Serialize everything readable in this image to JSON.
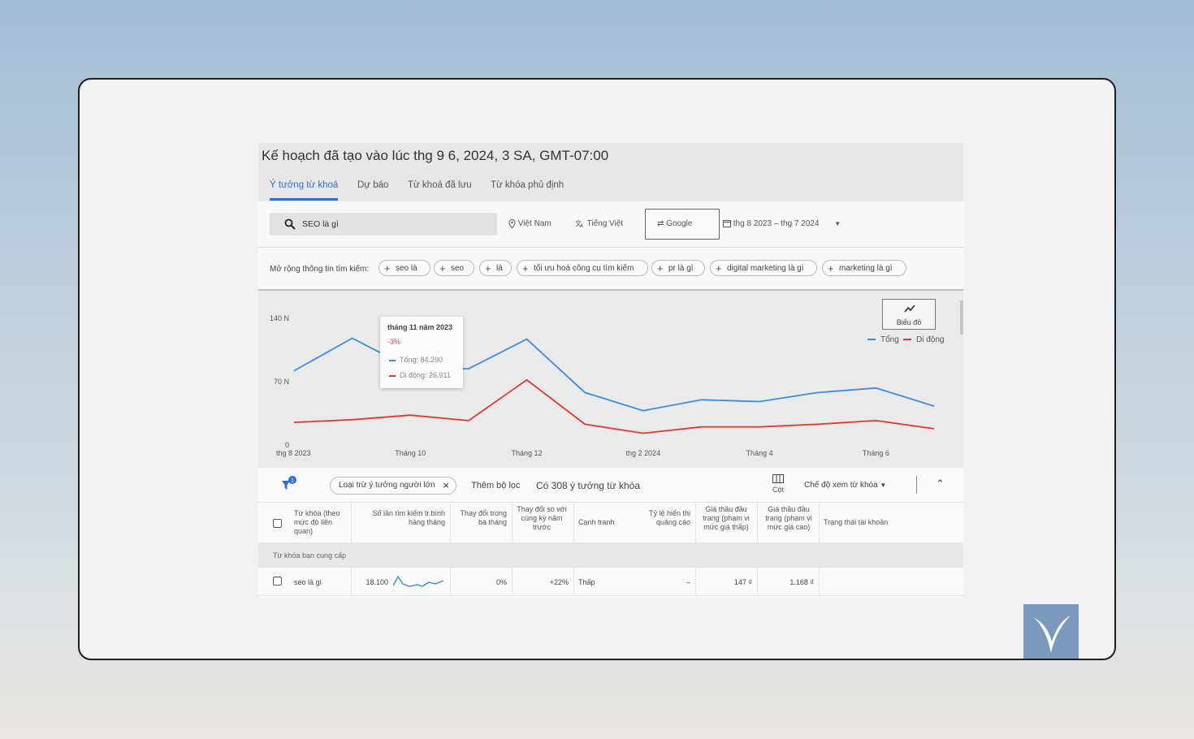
{
  "plan": {
    "title": "Kế hoạch đã tạo vào lúc thg 9 6, 2024, 3 SA, GMT-07:00"
  },
  "tabs": [
    "Ý tưởng từ khoá",
    "Dự báo",
    "Từ khoá đã lưu",
    "Từ khóa phủ định"
  ],
  "search": {
    "value": "SEO là gì"
  },
  "filters": {
    "location": "Việt Nam",
    "language": "Tiếng Việt",
    "network": "Google",
    "date_range": "thg 8 2023 – thg 7 2024"
  },
  "expand": {
    "label": "Mở rộng thông tin tìm kiếm:",
    "chips": [
      "seo là",
      "seo",
      "là",
      "tối ưu hoá công cụ tìm kiếm",
      "pr là gì",
      "digital marketing là gì",
      "marketing là gì"
    ]
  },
  "chart_button": {
    "label": "Biểu đồ"
  },
  "legend": [
    "Tổng",
    "Di động"
  ],
  "tooltip": {
    "title": "tháng 11 năm 2023",
    "change": "-3%",
    "total": "Tổng: 84.290",
    "mobile": "Di động: 26.911"
  },
  "chart_data": {
    "type": "line",
    "categories": [
      "thg 8 2023",
      "Tháng 9",
      "Tháng 10",
      "Tháng 11",
      "Tháng 12",
      "thg 1 2024",
      "thg 2 2024",
      "Tháng 3",
      "Tháng 4",
      "Tháng 5",
      "Tháng 6",
      "Tháng 7"
    ],
    "x_tick_labels": [
      "thg 8 2023",
      "Tháng 10",
      "Tháng 12",
      "thg 2 2024",
      "Tháng 4",
      "Tháng 6"
    ],
    "y_tick_labels": [
      "0",
      "70 N",
      "140 N"
    ],
    "ylim": [
      0,
      140000
    ],
    "series": [
      {
        "name": "Tổng",
        "color": "#3b8be0",
        "values": [
          82000,
          118000,
          85000,
          84290,
          117000,
          58000,
          38000,
          50000,
          48000,
          58000,
          63000,
          43000
        ]
      },
      {
        "name": "Di động",
        "color": "#e03a30",
        "values": [
          25000,
          28000,
          33000,
          26911,
          72000,
          23000,
          13000,
          20000,
          20000,
          23000,
          27000,
          18000
        ]
      }
    ]
  },
  "toolbar": {
    "exclusion_chip": "Loại trừ ý tưởng người lớn",
    "add_filter": "Thêm bộ lọc",
    "count": "Có 308 ý tưởng từ khóa",
    "columns": "Cột",
    "view_mode": "Chế độ xem từ khóa",
    "filter_badge": "1"
  },
  "table": {
    "headers": [
      "Từ khóa (theo mức độ liên quan)",
      "Số lần tìm kiếm tr.bình hàng tháng",
      "Thay đổi trong ba tháng",
      "Thay đổi so với cùng kỳ năm trước",
      "Cạnh tranh",
      "Tỷ lệ hiển thị quảng cáo",
      "Giá thầu đầu trang (phạm vi mức giá thấp)",
      "Giá thầu đầu trang (phạm vi mức giá cao)",
      "Trạng thái tài khoản"
    ],
    "group_label": "Từ khóa bạn cung cấp",
    "rows": [
      {
        "keyword": "seo là gì",
        "avg_searches": "18.100",
        "three_month_change": "0%",
        "yoy_change": "+22%",
        "competition": "Thấp",
        "impression_share": "–",
        "bid_low": "147 ₫",
        "bid_high": "1.168 ₫",
        "status": ""
      }
    ]
  },
  "colors": {
    "accent": "#2f6ed9",
    "total_series": "#3b8be0",
    "mobile_series": "#e03a30",
    "logo": "#7a99bd"
  }
}
